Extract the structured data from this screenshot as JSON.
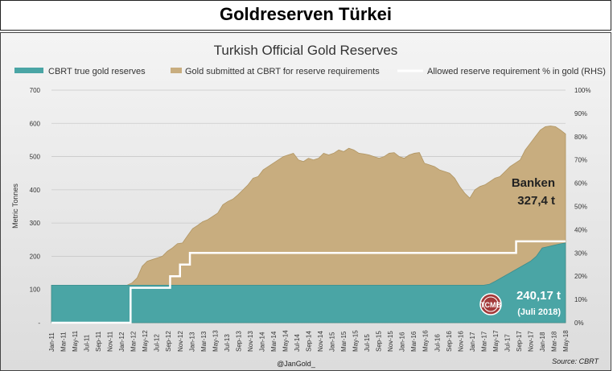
{
  "banner": {
    "title": "Goldreserven Türkei"
  },
  "chart_data": {
    "type": "area",
    "title": "Turkish Official Gold Reserves",
    "ylabel": "Metric Tonnes",
    "ylim": [
      0,
      700
    ],
    "y2lim": [
      0,
      100
    ],
    "yticks": [
      "-",
      "100",
      "200",
      "300",
      "400",
      "500",
      "600",
      "700"
    ],
    "y2ticks": [
      "0%",
      "10%",
      "20%",
      "30%",
      "40%",
      "50%",
      "60%",
      "70%",
      "80%",
      "90%",
      "100%"
    ],
    "xticks": [
      "Jan-11",
      "Mar-11",
      "May-11",
      "Jul-11",
      "Sep-11",
      "Nov-11",
      "Jan-12",
      "Mar-12",
      "May-12",
      "Jul-12",
      "Sep-12",
      "Nov-12",
      "Jan-13",
      "Mar-13",
      "May-13",
      "Jul-13",
      "Sep-13",
      "Nov-13",
      "Jan-14",
      "Mar-14",
      "May-14",
      "Jul-14",
      "Sep-14",
      "Nov-14",
      "Jan-15",
      "Mar-15",
      "May-15",
      "Jul-15",
      "Sep-15",
      "Nov-15",
      "Jan-16",
      "Mar-16",
      "May-16",
      "Jul-16",
      "Sep-16",
      "Nov-16",
      "Jan-17",
      "Mar-17",
      "May-17",
      "Jul-17",
      "Sep-17",
      "Nov-17",
      "Jan-18",
      "Mar-18",
      "May-18"
    ],
    "grid": true,
    "legend_position": "top",
    "series": [
      {
        "name": "CBRT true gold reserves",
        "color": "#4aa5a5",
        "values": [
          113,
          113,
          113,
          113,
          113,
          113,
          113,
          113,
          113,
          113,
          113,
          113,
          113,
          113,
          113,
          113,
          113,
          113,
          113,
          113,
          113,
          113,
          113,
          113,
          113,
          113,
          113,
          113,
          113,
          113,
          113,
          113,
          113,
          113,
          113,
          113,
          113,
          113,
          113,
          113,
          113,
          113,
          113,
          113,
          113,
          113,
          113,
          113,
          113,
          113,
          113,
          113,
          113,
          113,
          113,
          113,
          113,
          113,
          113,
          113,
          113,
          113,
          113,
          113,
          113,
          113,
          113,
          113,
          113,
          113,
          113,
          113,
          113,
          113,
          113,
          116,
          125,
          135,
          145,
          155,
          165,
          175,
          185,
          200,
          225,
          229,
          233,
          237,
          240
        ]
      },
      {
        "name": "Gold submitted at CBRT for reserve requirements",
        "color": "#c8ad7f",
        "values": [
          113,
          113,
          113,
          113,
          113,
          113,
          113,
          113,
          113,
          113,
          113,
          113,
          113,
          113,
          113,
          113,
          120,
          135,
          170,
          185,
          190,
          195,
          200,
          215,
          225,
          238,
          240,
          262,
          283,
          293,
          304,
          310,
          320,
          330,
          355,
          365,
          372,
          385,
          400,
          415,
          435,
          440,
          460,
          470,
          480,
          490,
          500,
          505,
          510,
          490,
          485,
          495,
          490,
          495,
          510,
          505,
          510,
          520,
          515,
          525,
          520,
          510,
          508,
          505,
          500,
          495,
          500,
          510,
          512,
          500,
          495,
          505,
          510,
          512,
          480,
          475,
          470,
          460,
          455,
          450,
          435,
          410,
          390,
          375,
          400,
          410,
          415,
          425,
          435,
          440,
          455,
          470,
          480,
          490,
          520,
          540,
          560,
          580,
          590,
          592,
          590,
          580,
          568
        ]
      },
      {
        "name": "Allowed reserve requirement % in gold (RHS)",
        "color": "#ffffff",
        "values": [
          0,
          0,
          0,
          0,
          0,
          0,
          0,
          0,
          0,
          0,
          0,
          0,
          0,
          0,
          0,
          0,
          15,
          15,
          15,
          15,
          15,
          15,
          15,
          15,
          20,
          20,
          25,
          25,
          30,
          30,
          30,
          30,
          30,
          30,
          30,
          30,
          30,
          30,
          30,
          30,
          30,
          30,
          30,
          30,
          30,
          30,
          30,
          30,
          30,
          30,
          30,
          30,
          30,
          30,
          30,
          30,
          30,
          30,
          30,
          30,
          30,
          30,
          30,
          30,
          30,
          30,
          30,
          30,
          30,
          30,
          30,
          30,
          30,
          30,
          30,
          30,
          30,
          30,
          30,
          30,
          30,
          30,
          30,
          30,
          30,
          30,
          30,
          30,
          30,
          30,
          30,
          30,
          30,
          30,
          35,
          35,
          35,
          35,
          35,
          35,
          35,
          35,
          35,
          35,
          35
        ]
      }
    ],
    "annotations": [
      {
        "id": "banken",
        "line1": "Banken",
        "line2": "327,4 t"
      },
      {
        "id": "cbrt",
        "line1": "240,17 t",
        "line2": "(Juli 2018)"
      }
    ],
    "footer_left": "@JanGold_",
    "footer_right": "Source: CBRT"
  }
}
